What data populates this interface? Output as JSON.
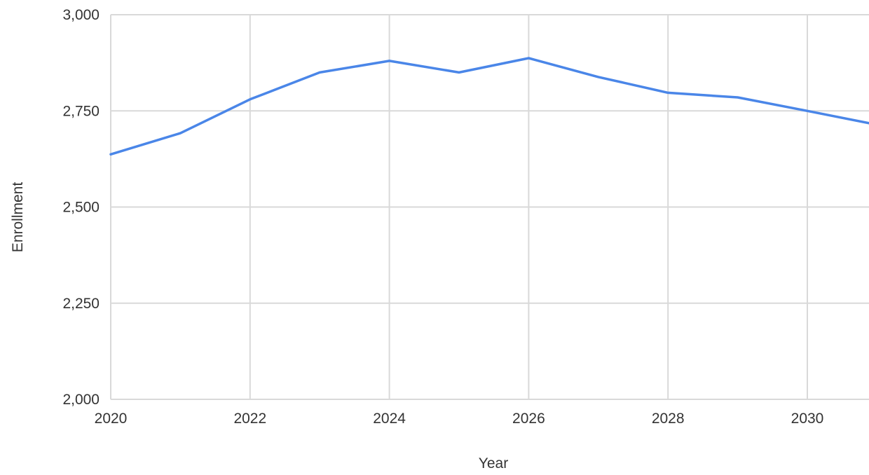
{
  "chart_data": {
    "type": "line",
    "title": "",
    "xlabel": "Year",
    "ylabel": "Enrollment",
    "x": [
      2020,
      2021,
      2022,
      2023,
      2024,
      2025,
      2026,
      2027,
      2028,
      2029,
      2030,
      2031
    ],
    "series": [
      {
        "values": [
          2637,
          2692,
          2780,
          2850,
          2880,
          2850,
          2887,
          2838,
          2797,
          2785,
          2750,
          2718
        ],
        "color": "#4a86e8"
      }
    ],
    "xlim": [
      2020,
      2031
    ],
    "ylim": [
      2000,
      3000
    ],
    "x_ticks": [
      2020,
      2022,
      2024,
      2026,
      2028,
      2030
    ],
    "x_tick_labels": [
      "2020",
      "2022",
      "2024",
      "2026",
      "2028",
      "2030"
    ],
    "y_ticks": [
      2000,
      2250,
      2500,
      2750,
      3000
    ],
    "y_tick_labels": [
      "2,000",
      "2,250",
      "2,500",
      "2,750",
      "3,000"
    ],
    "grid": true,
    "legend": "none"
  }
}
